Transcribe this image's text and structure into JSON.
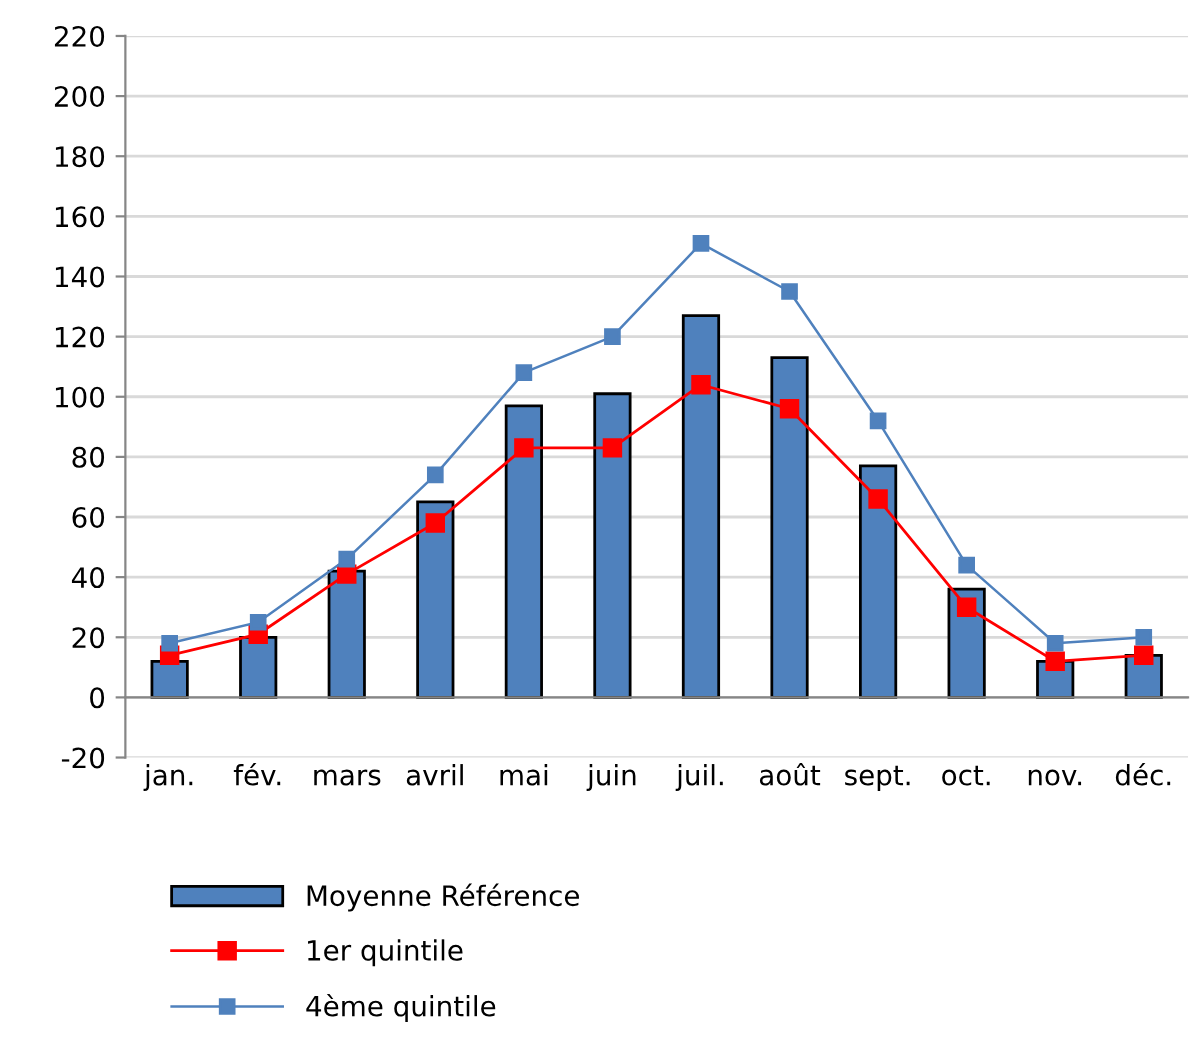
{
  "chart_data": {
    "type": "bar",
    "categories": [
      "jan.",
      "fév.",
      "mars",
      "avril",
      "mai",
      "juin",
      "juil.",
      "août",
      "sept.",
      "oct.",
      "nov.",
      "déc."
    ],
    "series": [
      {
        "name": "Moyenne Référence",
        "color": "#4f81bd",
        "values": [
          12,
          20,
          42,
          65,
          97,
          101,
          127,
          113,
          77,
          36,
          12,
          14
        ]
      },
      {
        "name": "1er quintile",
        "type": "line",
        "color": "#ff0000",
        "values": [
          14,
          21,
          41,
          58,
          83,
          83,
          104,
          96,
          66,
          30,
          12,
          14
        ]
      },
      {
        "name": "4ème quintile",
        "type": "line",
        "color": "#4f81bd",
        "values": [
          18,
          25,
          46,
          74,
          108,
          120,
          151,
          135,
          92,
          44,
          18,
          20
        ]
      }
    ],
    "ylim": [
      -20,
      220
    ],
    "yticks": [
      -20,
      0,
      20,
      40,
      60,
      80,
      100,
      120,
      140,
      160,
      180,
      200,
      220
    ],
    "grid": "y",
    "legend": "bottom",
    "marker": "square",
    "line_style": "solid"
  }
}
